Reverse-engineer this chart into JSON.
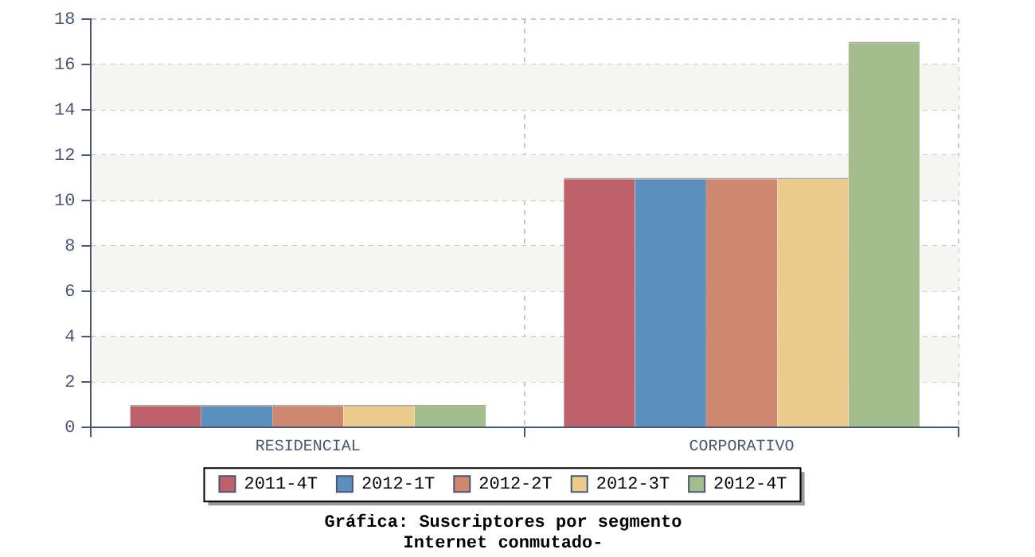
{
  "chart_data": {
    "type": "bar",
    "title": "Gráfica: Suscriptores por segmento",
    "subtitle": "Internet conmutado-",
    "categories": [
      "RESIDENCIAL",
      "CORPORATIVO"
    ],
    "series": [
      {
        "name": "2011-4T",
        "color": "#bf616a",
        "values": [
          1,
          11
        ]
      },
      {
        "name": "2012-1T",
        "color": "#5b8fbe",
        "values": [
          1,
          11
        ]
      },
      {
        "name": "2012-2T",
        "color": "#cf876f",
        "values": [
          1,
          11
        ]
      },
      {
        "name": "2012-3T",
        "color": "#eacb8b",
        "values": [
          1,
          11
        ]
      },
      {
        "name": "2012-4T",
        "color": "#a4bd8c",
        "values": [
          1,
          17
        ]
      }
    ],
    "ylim": [
      0,
      18
    ],
    "yticks": [
      0,
      2,
      4,
      6,
      8,
      10,
      12,
      14,
      16,
      18
    ],
    "grid": true,
    "legend": "bottom"
  }
}
